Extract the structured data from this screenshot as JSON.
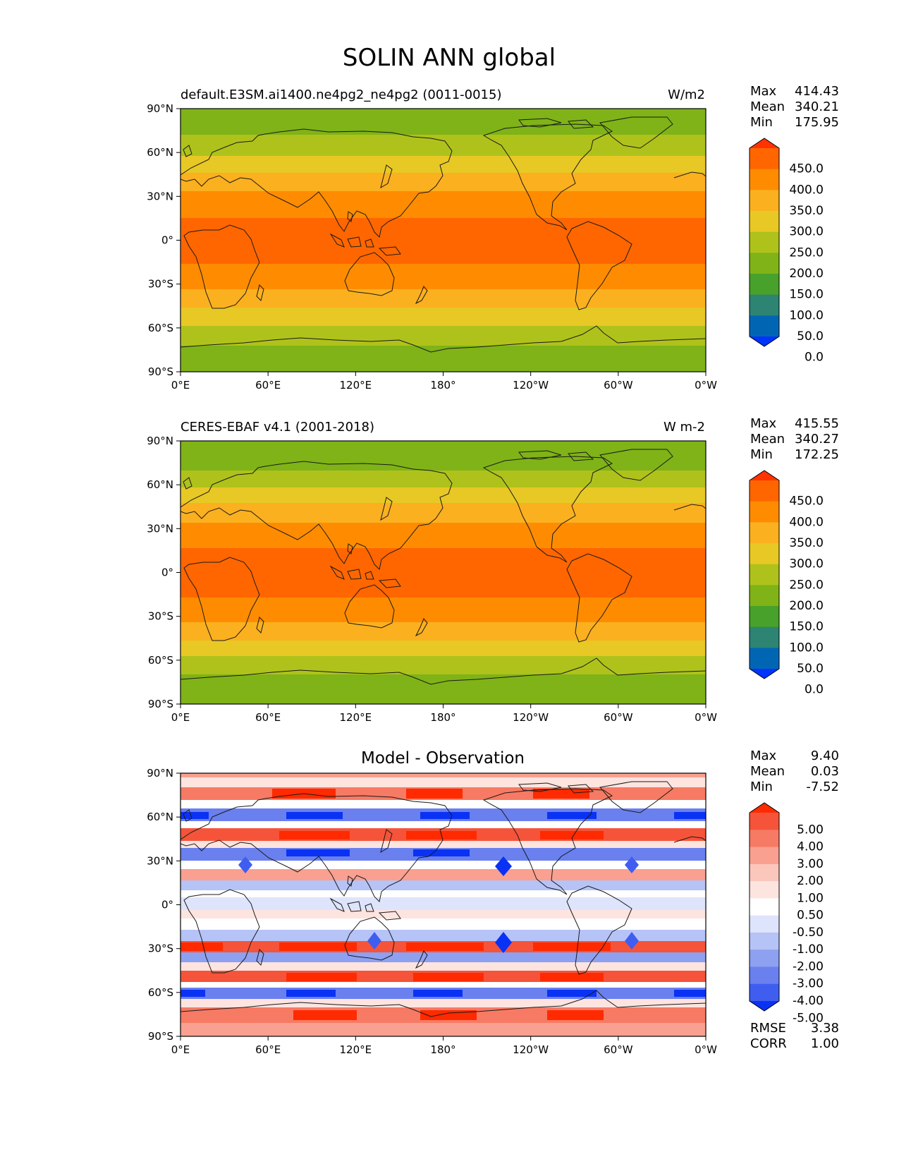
{
  "title": "SOLIN ANN global",
  "lon_ticks": [
    "0°E",
    "60°E",
    "120°E",
    "180°",
    "120°W",
    "60°W",
    "0°W"
  ],
  "lat_ticks": [
    "90°N",
    "60°N",
    "30°N",
    "0°",
    "30°S",
    "60°S",
    "90°S"
  ],
  "panels": [
    {
      "id": "test",
      "left_title": "default.E3SM.ai1400.ne4pg2_ne4pg2 (0011-0015)",
      "center_title": "",
      "right_title": "W/m2",
      "stats": [
        {
          "label": "Max",
          "value": "414.43"
        },
        {
          "label": "Mean",
          "value": "340.21"
        },
        {
          "label": "Min",
          "value": "175.95"
        }
      ],
      "extra_stats": []
    },
    {
      "id": "reference",
      "left_title": "CERES-EBAF v4.1 (2001-2018)",
      "center_title": "",
      "right_title": "W m-2",
      "stats": [
        {
          "label": "Max",
          "value": "415.55"
        },
        {
          "label": "Mean",
          "value": "340.27"
        },
        {
          "label": "Min",
          "value": "172.25"
        }
      ],
      "extra_stats": []
    },
    {
      "id": "difference",
      "left_title": "",
      "center_title": "Model - Observation",
      "right_title": "",
      "stats": [
        {
          "label": "Max",
          "value": "9.40"
        },
        {
          "label": "Mean",
          "value": "0.03"
        },
        {
          "label": "Min",
          "value": "-7.52"
        }
      ],
      "extra_stats": [
        {
          "label": "RMSE",
          "value": "3.38"
        },
        {
          "label": "CORR",
          "value": "1.00"
        }
      ]
    }
  ],
  "colorbars": {
    "field": {
      "labels": [
        "450.0",
        "400.0",
        "350.0",
        "300.0",
        "250.0",
        "200.0",
        "150.0",
        "100.0",
        "50.0",
        "0.0"
      ],
      "colors_top_to_bottom": [
        "#ff3300",
        "#ff6600",
        "#ff8c00",
        "#fbb01f",
        "#e8c825",
        "#afc21b",
        "#7fb317",
        "#48a12a",
        "#2e8473",
        "#0066b3",
        "#0033ff"
      ]
    },
    "diff": {
      "labels": [
        "5.00",
        "4.00",
        "3.00",
        "2.00",
        "1.00",
        "0.50",
        "-0.50",
        "-1.00",
        "-2.00",
        "-3.00",
        "-4.00",
        "-5.00"
      ],
      "colors_top_to_bottom": [
        "#ff2a00",
        "#f5543a",
        "#f77a64",
        "#f9a090",
        "#fbc6bb",
        "#fde4df",
        "#ffffff",
        "#dde4fb",
        "#b6c3f6",
        "#8ea0f0",
        "#6a80ee",
        "#3f5ef0",
        "#0a32f5"
      ]
    }
  },
  "chart_data": [
    {
      "type": "heatmap",
      "title": "default.E3SM.ai1400.ne4pg2_ne4pg2 (0011-0015)",
      "units": "W/m2",
      "lat_bands": [
        {
          "lat_range": [
            72,
            90
          ],
          "value_range": [
            150,
            200
          ]
        },
        {
          "lat_range": [
            58,
            72
          ],
          "value_range": [
            200,
            250
          ]
        },
        {
          "lat_range": [
            46,
            58
          ],
          "value_range": [
            250,
            300
          ]
        },
        {
          "lat_range": [
            34,
            46
          ],
          "value_range": [
            300,
            350
          ]
        },
        {
          "lat_range": [
            15,
            34
          ],
          "value_range": [
            350,
            400
          ]
        },
        {
          "lat_range": [
            -15,
            15
          ],
          "value_range": [
            400,
            450
          ]
        },
        {
          "lat_range": [
            -34,
            -15
          ],
          "value_range": [
            350,
            400
          ]
        },
        {
          "lat_range": [
            -46,
            -34
          ],
          "value_range": [
            300,
            350
          ]
        },
        {
          "lat_range": [
            -58,
            -46
          ],
          "value_range": [
            250,
            300
          ]
        },
        {
          "lat_range": [
            -72,
            -58
          ],
          "value_range": [
            200,
            250
          ]
        },
        {
          "lat_range": [
            -90,
            -72
          ],
          "value_range": [
            150,
            200
          ]
        }
      ],
      "max": 414.43,
      "mean": 340.21,
      "min": 175.95
    },
    {
      "type": "heatmap",
      "title": "CERES-EBAF v4.1 (2001-2018)",
      "units": "W m-2",
      "lat_bands": [
        {
          "lat_range": [
            76,
            90
          ],
          "value_range": [
            150,
            200
          ]
        },
        {
          "lat_range": [
            66,
            76
          ],
          "value_range": [
            200,
            250
          ]
        },
        {
          "lat_range": [
            52,
            66
          ],
          "value_range": [
            250,
            300
          ]
        },
        {
          "lat_range": [
            34,
            52
          ],
          "value_range": [
            300,
            350
          ]
        },
        {
          "lat_range": [
            17,
            34
          ],
          "value_range": [
            350,
            400
          ]
        },
        {
          "lat_range": [
            -17,
            17
          ],
          "value_range": [
            400,
            450
          ]
        },
        {
          "lat_range": [
            -34,
            -17
          ],
          "value_range": [
            350,
            400
          ]
        },
        {
          "lat_range": [
            -46,
            -34
          ],
          "value_range": [
            300,
            350
          ]
        },
        {
          "lat_range": [
            -58,
            -46
          ],
          "value_range": [
            250,
            300
          ]
        },
        {
          "lat_range": [
            -70,
            -58
          ],
          "value_range": [
            200,
            250
          ]
        },
        {
          "lat_range": [
            -90,
            -70
          ],
          "value_range": [
            150,
            200
          ]
        }
      ],
      "max": 415.55,
      "mean": 340.27,
      "min": 172.25
    },
    {
      "type": "heatmap",
      "title": "Model - Observation",
      "lat_bands": [
        {
          "lat_range": [
            85,
            90
          ],
          "value_range": [
            1,
            2
          ]
        },
        {
          "lat_range": [
            78,
            85
          ],
          "value_range": [
            0.5,
            1
          ]
        },
        {
          "lat_range": [
            70,
            78
          ],
          "value_range": [
            3,
            5
          ]
        },
        {
          "lat_range": [
            64,
            70
          ],
          "value_range": [
            -0.5,
            0.5
          ]
        },
        {
          "lat_range": [
            57,
            64
          ],
          "value_range": [
            -5,
            -3
          ]
        },
        {
          "lat_range": [
            50,
            57
          ],
          "value_range": [
            -0.5,
            0.5
          ]
        },
        {
          "lat_range": [
            43,
            50
          ],
          "value_range": [
            3,
            5
          ]
        },
        {
          "lat_range": [
            37,
            43
          ],
          "value_range": [
            0.5,
            1
          ]
        },
        {
          "lat_range": [
            30,
            37
          ],
          "value_range": [
            -5,
            -3
          ]
        },
        {
          "lat_range": [
            24,
            30
          ],
          "value_range": [
            -0.5,
            0.5
          ]
        },
        {
          "lat_range": [
            17,
            24
          ],
          "value_range": [
            2,
            4
          ]
        },
        {
          "lat_range": [
            10,
            17
          ],
          "value_range": [
            -3,
            -1
          ]
        },
        {
          "lat_range": [
            4,
            10
          ],
          "value_range": [
            -0.5,
            0.5
          ]
        },
        {
          "lat_range": [
            -4,
            4
          ],
          "value_range": [
            -1,
            -0.5
          ]
        },
        {
          "lat_range": [
            -10,
            -4
          ],
          "value_range": [
            0.5,
            1
          ]
        },
        {
          "lat_range": [
            -18,
            -10
          ],
          "value_range": [
            -0.5,
            0.5
          ]
        },
        {
          "lat_range": [
            -26,
            -18
          ],
          "value_range": [
            -3,
            -1
          ]
        },
        {
          "lat_range": [
            -34,
            -26
          ],
          "value_range": [
            3,
            5
          ]
        },
        {
          "lat_range": [
            -40,
            -34
          ],
          "value_range": [
            -4,
            -2
          ]
        },
        {
          "lat_range": [
            -46,
            -40
          ],
          "value_range": [
            0.5,
            1
          ]
        },
        {
          "lat_range": [
            -52,
            -46
          ],
          "value_range": [
            3,
            5
          ]
        },
        {
          "lat_range": [
            -57,
            -52
          ],
          "value_range": [
            -0.5,
            0.5
          ]
        },
        {
          "lat_range": [
            -64,
            -57
          ],
          "value_range": [
            -5,
            -3
          ]
        },
        {
          "lat_range": [
            -70,
            -64
          ],
          "value_range": [
            0.5,
            1
          ]
        },
        {
          "lat_range": [
            -80,
            -70
          ],
          "value_range": [
            3,
            5
          ]
        },
        {
          "lat_range": [
            -90,
            -80
          ],
          "value_range": [
            1,
            2
          ]
        }
      ],
      "max": 9.4,
      "mean": 0.03,
      "min": -7.52,
      "rmse": 3.38,
      "corr": 1.0
    }
  ]
}
